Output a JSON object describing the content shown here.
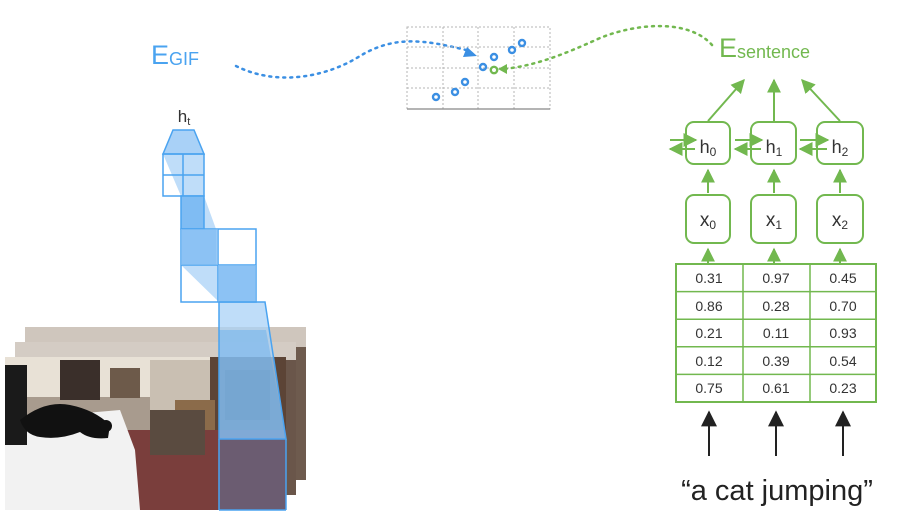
{
  "colors": {
    "gif_blue": "#4aa3f0",
    "gif_blue_fill": "#a9d1f7",
    "sentence_green": "#72b84f",
    "grid_gray": "#b5b5b5",
    "text_dark": "#333333"
  },
  "embedding_labels": {
    "gif": {
      "main": "E",
      "sub": "GIF"
    },
    "sentence": {
      "main": "E",
      "sub": "sentence"
    }
  },
  "cnn": {
    "output_label": {
      "main": "h",
      "sub": "t"
    }
  },
  "rnn": {
    "hidden": [
      {
        "main": "h",
        "sub": "0"
      },
      {
        "main": "h",
        "sub": "1"
      },
      {
        "main": "h",
        "sub": "2"
      }
    ],
    "inputs": [
      {
        "main": "x",
        "sub": "0"
      },
      {
        "main": "x",
        "sub": "1"
      },
      {
        "main": "x",
        "sub": "2"
      }
    ]
  },
  "embedding_table": {
    "rows": [
      [
        "0.31",
        "0.97",
        "0.45"
      ],
      [
        "0.86",
        "0.28",
        "0.70"
      ],
      [
        "0.21",
        "0.11",
        "0.93"
      ],
      [
        "0.12",
        "0.39",
        "0.54"
      ],
      [
        "0.75",
        "0.61",
        "0.23"
      ]
    ]
  },
  "sentence_text": "“a cat jumping”",
  "gif_frames": {
    "icons": [
      "cat-photo-icon",
      "room-photo-icon"
    ]
  }
}
